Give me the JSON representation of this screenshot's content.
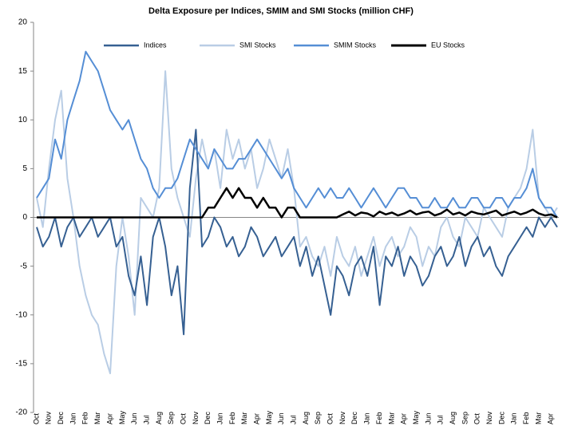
{
  "chart_data": {
    "type": "line",
    "title": "Delta Exposure per Indices, SMIM and SMI Stocks (million CHF)",
    "categories": [
      "Oct",
      null,
      "Nov",
      null,
      "Dec",
      null,
      "Jan",
      null,
      "Feb",
      null,
      "Mar",
      null,
      "Apr",
      null,
      "May",
      null,
      "Jun",
      null,
      "Jul",
      null,
      "Aug",
      null,
      "Sep",
      null,
      "Oct",
      null,
      "Nov",
      null,
      "Dec",
      null,
      "Jan",
      null,
      "Feb",
      null,
      "Mar",
      null,
      "Apr",
      null,
      "May",
      null,
      "Jun",
      null,
      "Jul",
      null,
      "Aug",
      null,
      "Sep",
      null,
      "Oct",
      null,
      "Nov",
      null,
      "Dec",
      null,
      "Jan",
      null,
      "Feb",
      null,
      "Mar",
      null,
      "Apr",
      null,
      "May",
      null,
      "Jun",
      null,
      "Jul",
      null,
      "Aug",
      null,
      "Sep",
      null,
      "Oct",
      null,
      "Nov",
      null,
      "Dec",
      null,
      "Jan",
      null,
      "Feb",
      null,
      "Mar",
      null,
      "Apr",
      null
    ],
    "series": [
      {
        "name": "Indices",
        "color": "#366092",
        "values": [
          -1,
          -3,
          -2,
          0,
          -3,
          -1,
          0,
          -2,
          -1,
          0,
          -2,
          -1,
          0,
          -3,
          -2,
          -6,
          -8,
          -4,
          -9,
          -2,
          0,
          -3,
          -8,
          -5,
          -12,
          3,
          9,
          -3,
          -2,
          0,
          -1,
          -3,
          -2,
          -4,
          -3,
          -1,
          -2,
          -4,
          -3,
          -2,
          -4,
          -3,
          -2,
          -5,
          -3,
          -6,
          -4,
          -7,
          -10,
          -5,
          -6,
          -8,
          -5,
          -4,
          -6,
          -3,
          -9,
          -4,
          -5,
          -3,
          -6,
          -4,
          -5,
          -7,
          -6,
          -4,
          -3,
          -5,
          -4,
          -2,
          -5,
          -3,
          -2,
          -4,
          -3,
          -5,
          -6,
          -4,
          -3,
          -2,
          -1,
          -2,
          0,
          -1,
          0,
          -1
        ]
      },
      {
        "name": "SMI Stocks",
        "color": "#b9cde5",
        "values": [
          2,
          -1,
          5,
          10,
          13,
          4,
          0,
          -5,
          -8,
          -10,
          -11,
          -14,
          -16,
          -5,
          0,
          -4,
          -10,
          2,
          1,
          0,
          3,
          15,
          5,
          2,
          0,
          -2,
          4,
          8,
          5,
          7,
          3,
          9,
          6,
          8,
          5,
          7,
          3,
          5,
          8,
          6,
          4,
          7,
          3,
          -3,
          -2,
          -4,
          -5,
          -3,
          -6,
          -2,
          -4,
          -5,
          -3,
          -6,
          -4,
          -2,
          -5,
          -3,
          -2,
          -4,
          -3,
          -1,
          -2,
          -5,
          -3,
          -4,
          -1,
          0,
          -2,
          -3,
          0,
          -1,
          -2,
          1,
          0,
          -1,
          -2,
          1,
          2,
          3,
          5,
          9,
          2,
          1,
          0,
          1
        ]
      },
      {
        "name": "SMIM Stocks",
        "color": "#558ed5",
        "values": [
          2,
          3,
          4,
          8,
          6,
          10,
          12,
          14,
          17,
          16,
          15,
          13,
          11,
          10,
          9,
          10,
          8,
          6,
          5,
          3,
          2,
          3,
          3,
          4,
          6,
          8,
          7,
          6,
          5,
          7,
          6,
          5,
          5,
          6,
          6,
          7,
          8,
          7,
          6,
          5,
          4,
          5,
          3,
          2,
          1,
          2,
          3,
          2,
          3,
          2,
          2,
          3,
          2,
          1,
          2,
          3,
          2,
          1,
          2,
          3,
          3,
          2,
          2,
          1,
          1,
          2,
          1,
          1,
          2,
          1,
          1,
          2,
          2,
          1,
          1,
          2,
          2,
          1,
          2,
          2,
          3,
          5,
          2,
          1,
          1,
          0
        ]
      },
      {
        "name": "EU Stocks",
        "color": "#000000",
        "values": [
          0,
          0,
          0,
          0,
          0,
          0,
          0,
          0,
          0,
          0,
          0,
          0,
          0,
          0,
          0,
          0,
          0,
          0,
          0,
          0,
          0,
          0,
          0,
          0,
          0,
          0,
          0,
          0,
          1,
          1,
          2,
          3,
          2,
          3,
          2,
          2,
          1,
          2,
          1,
          1,
          0,
          1,
          1,
          0,
          0,
          0,
          0,
          0,
          0,
          0,
          0.3,
          0.6,
          0.2,
          0.5,
          0.4,
          0.1,
          0.6,
          0.3,
          0.5,
          0.2,
          0.4,
          0.7,
          0.3,
          0.5,
          0.6,
          0.2,
          0.4,
          0.8,
          0.3,
          0.5,
          0.2,
          0.6,
          0.4,
          0.3,
          0.5,
          0.7,
          0.2,
          0.4,
          0.6,
          0.3,
          0.5,
          0.8,
          0.4,
          0.2,
          0.3,
          0
        ]
      }
    ],
    "ylim": [
      -20,
      20
    ],
    "yticks": [
      -20,
      -15,
      -10,
      -5,
      0,
      5,
      10,
      15,
      20
    ],
    "legend": "top"
  }
}
